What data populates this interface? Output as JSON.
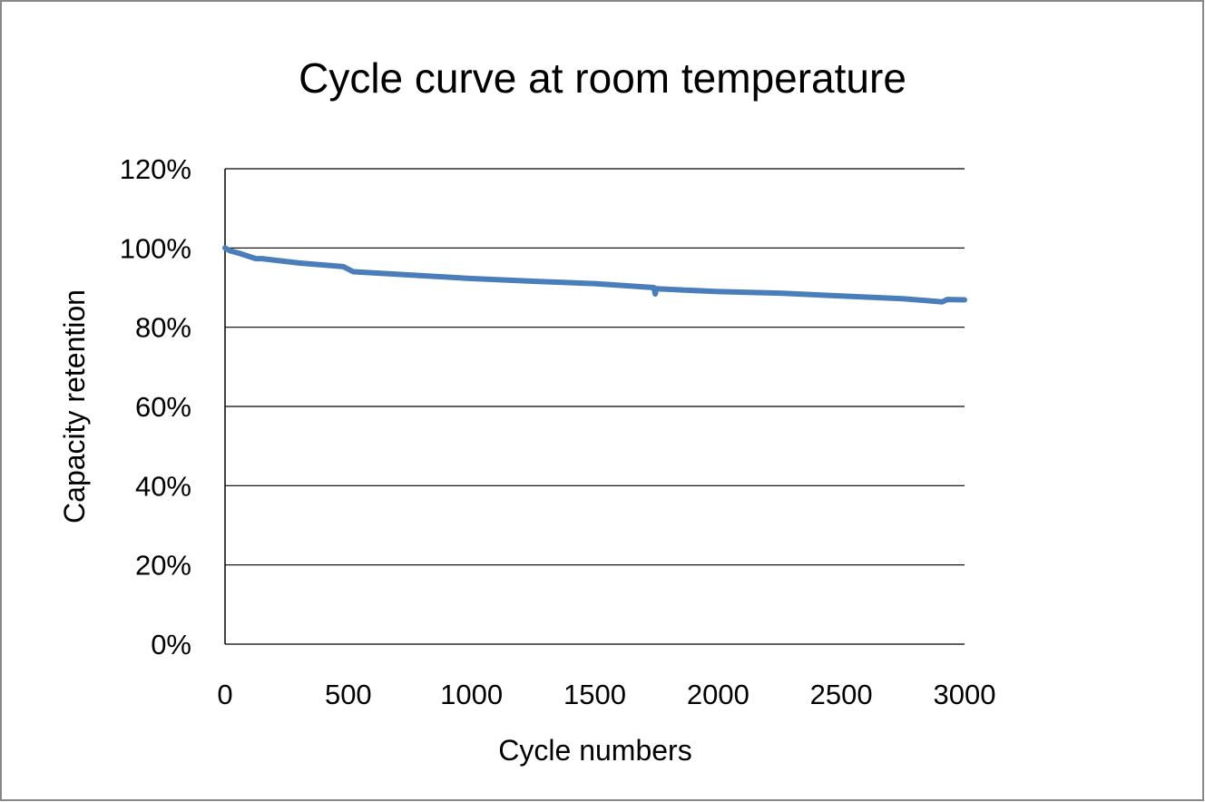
{
  "chart_data": {
    "type": "line",
    "title": "Cycle curve at room temperature",
    "xlabel": "Cycle numbers",
    "ylabel": "Capacity retention",
    "xlim": [
      0,
      3000
    ],
    "ylim": [
      0,
      120
    ],
    "x_ticks": [
      "0",
      "500",
      "1000",
      "1500",
      "2000",
      "2500",
      "3000"
    ],
    "x_tick_values": [
      0,
      500,
      1000,
      1500,
      2000,
      2500,
      3000
    ],
    "y_ticks": [
      "0%",
      "20%",
      "40%",
      "60%",
      "80%",
      "100%",
      "120%"
    ],
    "y_tick_values": [
      0,
      20,
      40,
      60,
      80,
      100,
      120
    ],
    "grid": "horizontal",
    "legend": "none",
    "series_color": "#4a7ebb",
    "series": [
      {
        "x": [
          0,
          20,
          60,
          125,
          150,
          300,
          480,
          520,
          800,
          1000,
          1250,
          1500,
          1740,
          1745,
          1750,
          2000,
          2250,
          2500,
          2750,
          2910,
          2930,
          3000
        ],
        "y": [
          100,
          99.3,
          98.6,
          97.3,
          97.3,
          96.2,
          95.3,
          94.0,
          93.0,
          92.3,
          91.6,
          91.0,
          90.0,
          88.4,
          89.7,
          89.0,
          88.6,
          87.9,
          87.2,
          86.4,
          87.0,
          86.9
        ]
      }
    ]
  }
}
